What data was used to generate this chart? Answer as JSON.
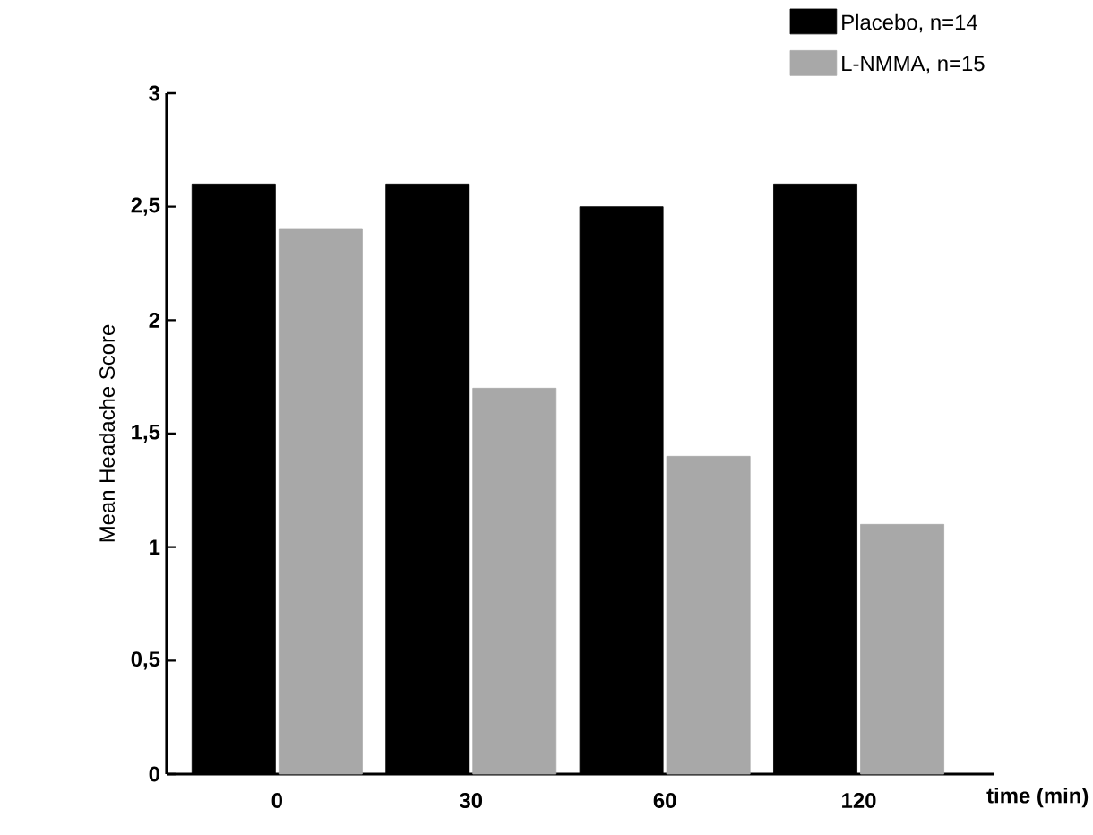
{
  "chart_data": {
    "type": "bar",
    "ylabel": "Mean Headache Score",
    "xlabel": "time (min)",
    "categories": [
      "0",
      "30",
      "60",
      "120"
    ],
    "series": [
      {
        "name": "Placebo, n=14",
        "color": "#000000",
        "values": [
          2.6,
          2.6,
          2.5,
          2.6
        ]
      },
      {
        "name": "L-NMMA, n=15",
        "color": "#a8a8a8",
        "values": [
          2.4,
          1.7,
          1.4,
          1.1
        ]
      }
    ],
    "ylim": [
      0,
      3
    ],
    "yticks": [
      0,
      {
        "value": 0.5,
        "label": "0,5"
      },
      1,
      {
        "value": 1.5,
        "label": "1,5"
      },
      2,
      {
        "value": 2.5,
        "label": "2,5"
      },
      3
    ],
    "legend": "top right"
  }
}
